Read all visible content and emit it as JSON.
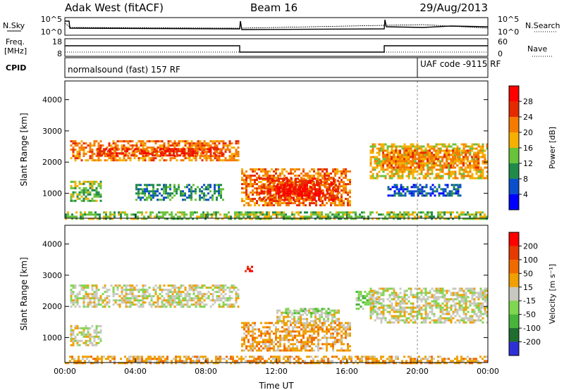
{
  "header": {
    "station": "Adak West (fitACF)",
    "beam": "Beam 16",
    "date": "29/Aug/2013"
  },
  "noise_panel": {
    "left_label": "N.Sky",
    "right_label": "N.Search",
    "left_ticks": [
      "10^5",
      "10^0"
    ],
    "right_ticks": [
      "10^5",
      "10^0"
    ]
  },
  "freq_panel": {
    "left_label_1": "Freq.",
    "left_label_2": "[MHz]",
    "right_label": "Nave",
    "left_ticks": [
      "18",
      "8"
    ],
    "right_ticks": [
      "60",
      "0"
    ]
  },
  "cpid_panel": {
    "label": "CPID",
    "program_1": "normalsound (fast) 157 RF",
    "program_2": "UAF code -9115 RF"
  },
  "colors": {
    "power": [
      "#0000ff",
      "#0a4fcc",
      "#1f8a4a",
      "#68c23a",
      "#f5b000",
      "#f57a00",
      "#e62a00",
      "#ff0000"
    ],
    "velocity": [
      "#2f2fd6",
      "#1f6e2f",
      "#47b43a",
      "#7fd650",
      "#c8c8c0",
      "#f0a000",
      "#f06a00",
      "#e63a00",
      "#ff0000"
    ],
    "ground_scatter": "#c8c8c0"
  },
  "chart_data": [
    {
      "type": "heatmap",
      "name": "power",
      "xlabel": "",
      "ylabel": "Slant Range [km]",
      "xlim": [
        0,
        24
      ],
      "ylim": [
        200,
        4600
      ],
      "yticks": [
        1000,
        2000,
        3000,
        4000
      ],
      "colorbar": {
        "label": "Power [dB]",
        "ticks": [
          "28",
          "24",
          "20",
          "16",
          "12",
          "8",
          "4"
        ]
      },
      "regions": [
        {
          "x0": 0.3,
          "x1": 9.9,
          "y0": 2050,
          "y1": 2700,
          "level": 5
        },
        {
          "x0": 1.8,
          "x1": 9.0,
          "y0": 2200,
          "y1": 2450,
          "level": 6
        },
        {
          "x0": 0.3,
          "x1": 2.1,
          "y0": 750,
          "y1": 1400,
          "level": 3
        },
        {
          "x0": 4.0,
          "x1": 9.0,
          "y0": 800,
          "y1": 1300,
          "level": 2
        },
        {
          "x0": 10.0,
          "x1": 16.2,
          "y0": 600,
          "y1": 1800,
          "level": 5
        },
        {
          "x0": 11.0,
          "x1": 15.5,
          "y0": 800,
          "y1": 1500,
          "level": 6
        },
        {
          "x0": 12.0,
          "x1": 14.5,
          "y0": 900,
          "y1": 1300,
          "level": 7
        },
        {
          "x0": 17.3,
          "x1": 24.0,
          "y0": 1500,
          "y1": 2600,
          "level": 4
        },
        {
          "x0": 18.0,
          "x1": 23.5,
          "y0": 1800,
          "y1": 2400,
          "level": 5
        },
        {
          "x0": 18.3,
          "x1": 22.5,
          "y0": 900,
          "y1": 1300,
          "level": 1
        },
        {
          "x0": 0.0,
          "x1": 24.0,
          "y0": 200,
          "y1": 420,
          "level": 3
        }
      ]
    },
    {
      "type": "heatmap",
      "name": "velocity",
      "xlabel": "Time UT",
      "ylabel": "Slant Range [km]",
      "xlim": [
        0,
        24
      ],
      "ylim": [
        200,
        4600
      ],
      "xticks": [
        "00:00",
        "04:00",
        "08:00",
        "12:00",
        "16:00",
        "20:00",
        "00:00"
      ],
      "yticks": [
        1000,
        2000,
        3000,
        4000
      ],
      "colorbar": {
        "label": "Velocity [m s⁻¹]",
        "ticks": [
          "200",
          "100",
          "50",
          "15",
          "-15",
          "-50",
          "-100",
          "-200"
        ]
      },
      "regions": [
        {
          "x0": 0.3,
          "x1": 9.9,
          "y0": 2000,
          "y1": 2700,
          "level": 4
        },
        {
          "x0": 0.3,
          "x1": 2.1,
          "y0": 750,
          "y1": 1400,
          "level": 4
        },
        {
          "x0": 10.0,
          "x1": 16.2,
          "y0": 600,
          "y1": 1500,
          "level": 5
        },
        {
          "x0": 12.0,
          "x1": 15.5,
          "y0": 1550,
          "y1": 1900,
          "level": 4
        },
        {
          "x0": 12.5,
          "x1": 15.0,
          "y0": 1750,
          "y1": 1950,
          "level": 3
        },
        {
          "x0": 16.5,
          "x1": 17.8,
          "y0": 1900,
          "y1": 2500,
          "level": 3
        },
        {
          "x0": 17.3,
          "x1": 24.0,
          "y0": 1500,
          "y1": 2600,
          "level": 4
        },
        {
          "x0": 10.2,
          "x1": 10.6,
          "y0": 3100,
          "y1": 3300,
          "level": 8
        },
        {
          "x0": 0.0,
          "x1": 24.0,
          "y0": 200,
          "y1": 420,
          "level": 5
        }
      ]
    }
  ]
}
